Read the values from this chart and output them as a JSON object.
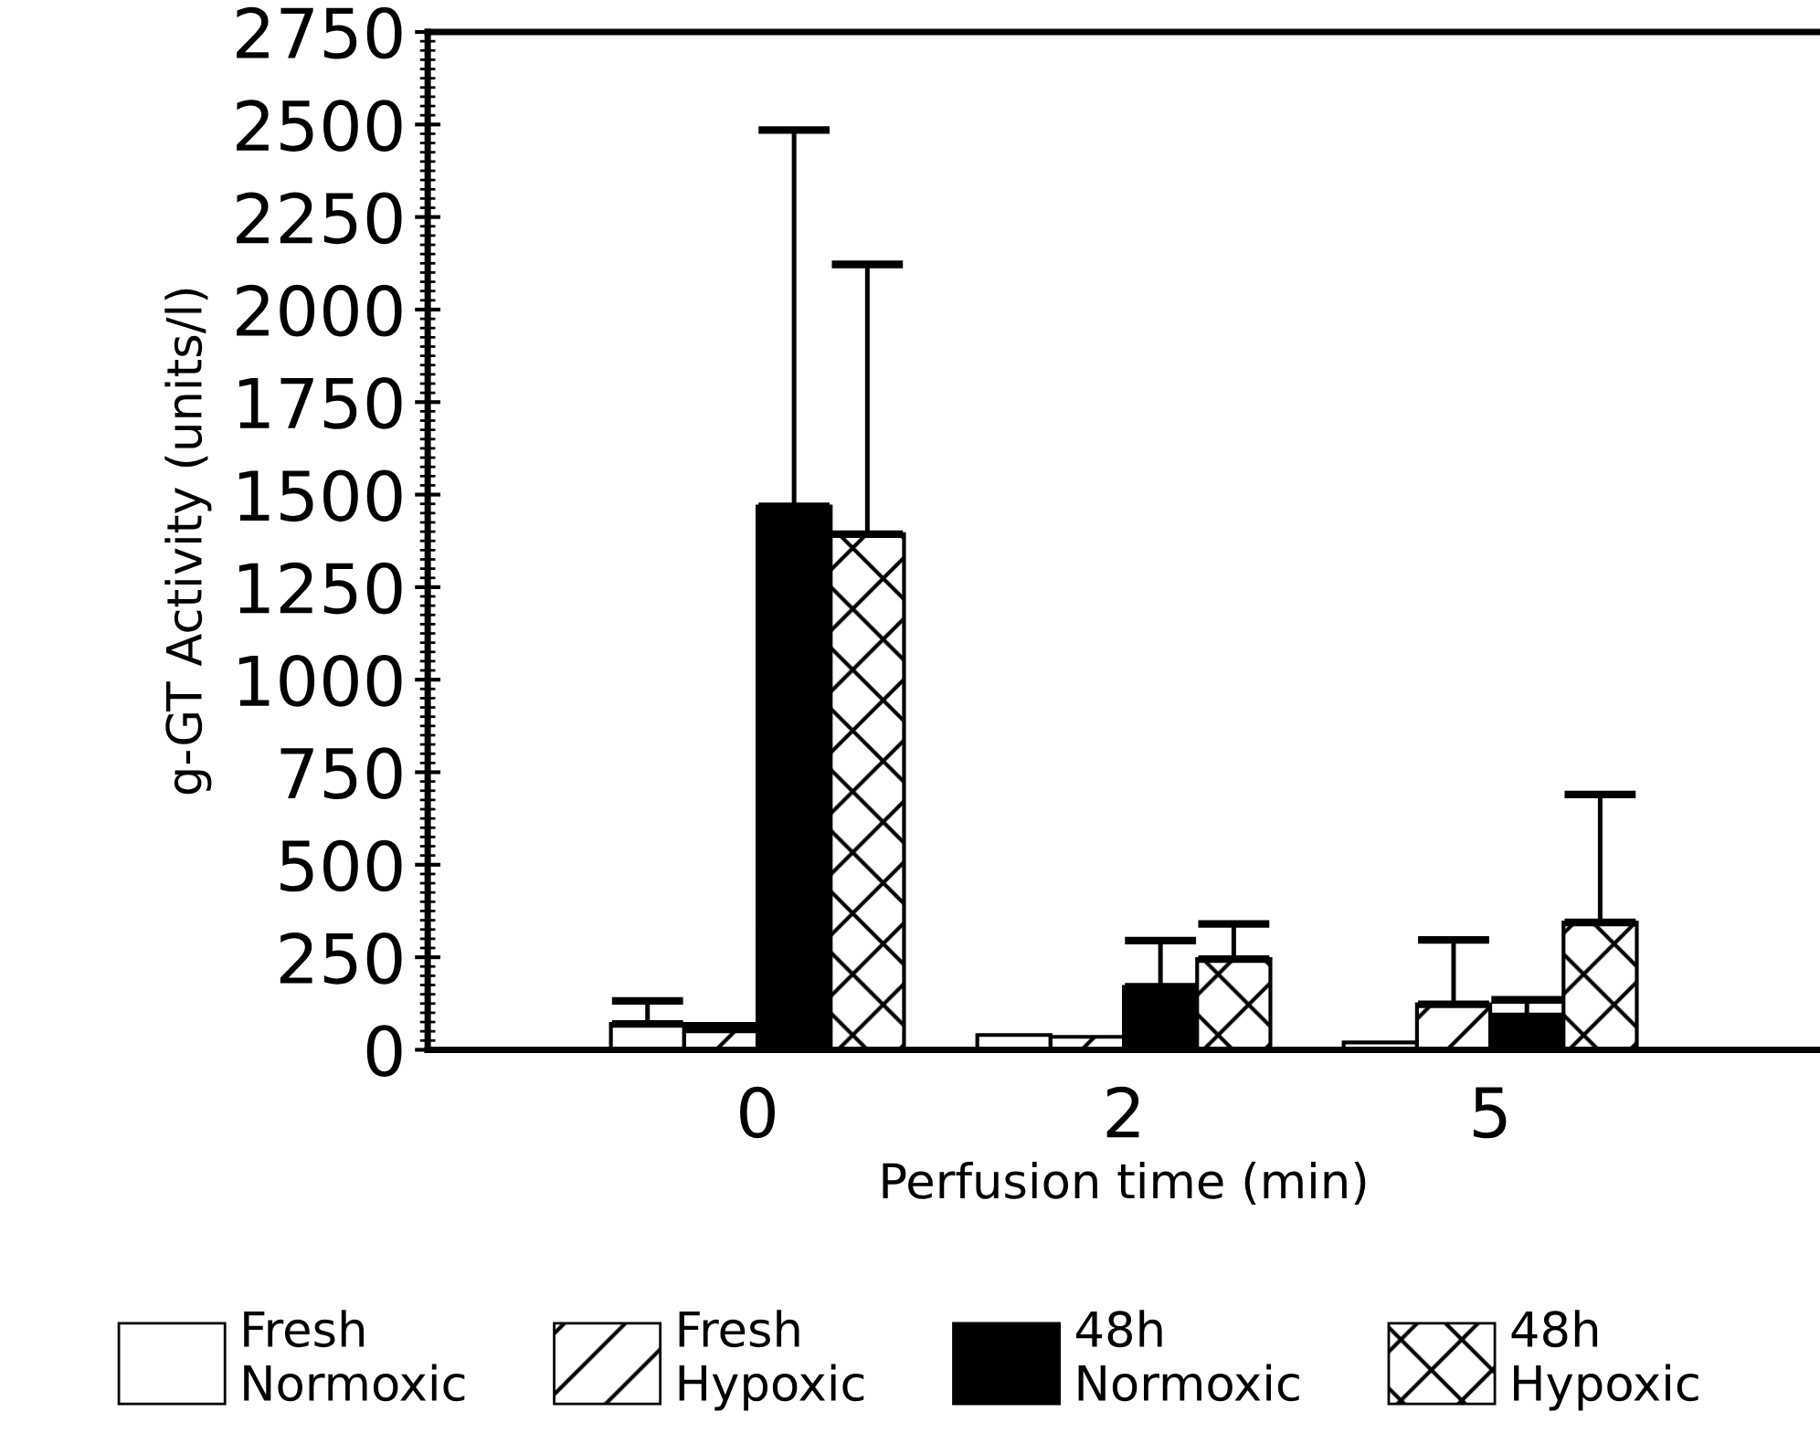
{
  "chart_data": {
    "type": "bar",
    "xlabel": "Perfusion time (min)",
    "ylabel": "g-GT Activity (units/l)",
    "categories": [
      "0",
      "2",
      "5"
    ],
    "series": [
      {
        "name": "Fresh\nNormoxic",
        "color": "#ffffff",
        "values": [
          70,
          40,
          20
        ],
        "errors": [
          [
            70,
            132
          ],
          null,
          null
        ]
      },
      {
        "name": "Fresh\nHypoxic",
        "color": "#000000",
        "values": [
          55,
          35,
          123
        ],
        "errors": [
          [
            55,
            65
          ],
          null,
          [
            123,
            297
          ]
        ]
      },
      {
        "name": "48h\nNormoxic",
        "color": "#000000",
        "values": [
          1468,
          170,
          90
        ],
        "errors": [
          [
            1468,
            2485
          ],
          [
            170,
            295
          ],
          [
            90,
            135
          ]
        ]
      },
      {
        "name": "48h\nHypoxic",
        "color": "#000000",
        "values": [
          1393,
          245,
          344
        ],
        "errors": [
          [
            1393,
            2122
          ],
          [
            245,
            340
          ],
          [
            344,
            690
          ]
        ]
      }
    ],
    "ylim": [
      0,
      2750
    ],
    "yticks": [
      0,
      250,
      500,
      750,
      1000,
      1250,
      1500,
      1750,
      2000,
      2250,
      2500,
      2750
    ],
    "grid": false,
    "legend": "bottom"
  }
}
